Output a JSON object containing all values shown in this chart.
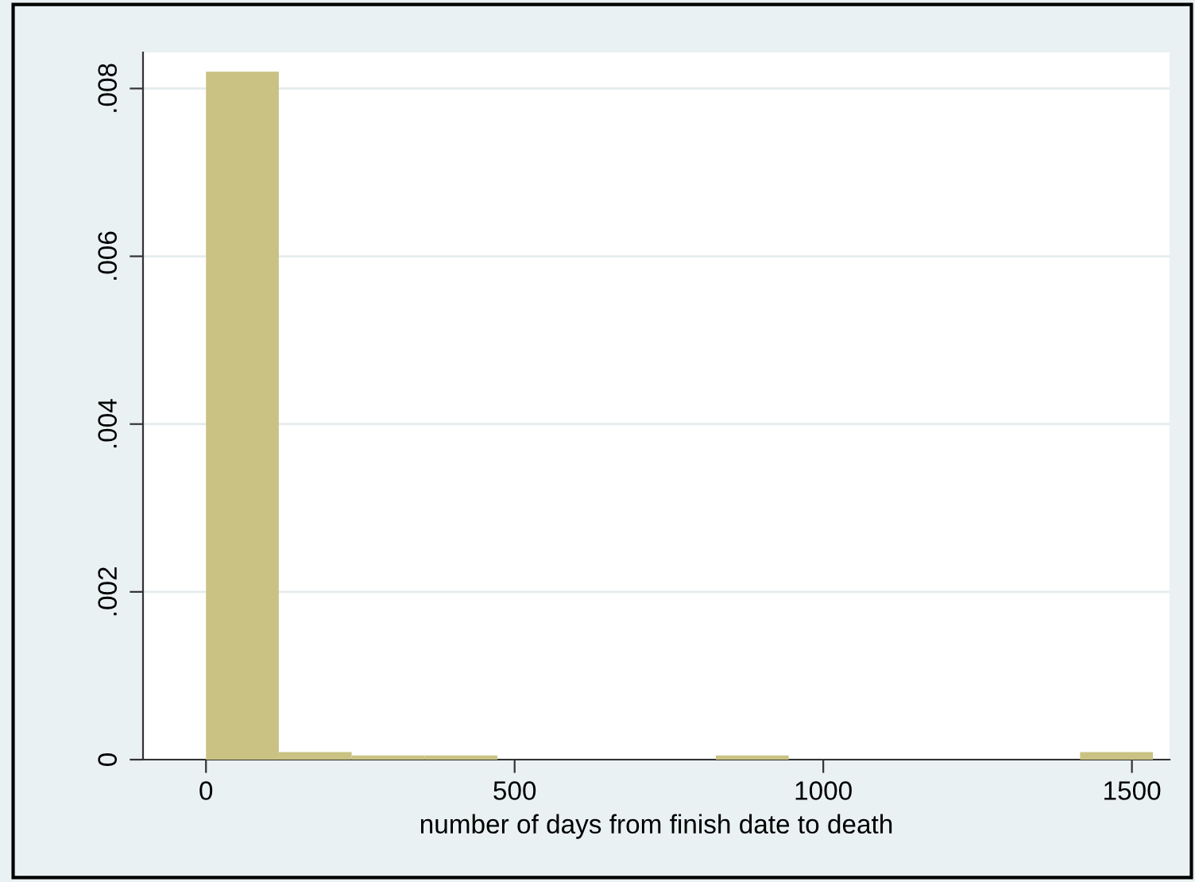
{
  "chart_data": {
    "type": "histogram",
    "xlabel": "number of days from finish date to death",
    "bins": [
      0,
      118,
      236,
      354,
      472,
      590,
      708,
      826,
      944,
      1062,
      1180,
      1298,
      1416,
      1534
    ],
    "values": [
      0.0082,
      9e-05,
      5e-05,
      5e-05,
      0,
      0,
      0,
      5e-05,
      0,
      0,
      0,
      0,
      9e-05
    ],
    "color": "#c9c283",
    "xlim": [
      -102,
      1561
    ],
    "ylim": [
      0,
      0.00843
    ],
    "xticks": [
      0,
      500,
      1000,
      1500
    ],
    "yticks": [
      {
        "value": 0,
        "label": "0"
      },
      {
        "value": 0.002,
        "label": ".002"
      },
      {
        "value": 0.004,
        "label": ".004"
      },
      {
        "value": 0.006,
        "label": ".006"
      },
      {
        "value": 0.008,
        "label": ".008"
      }
    ],
    "grid": "y",
    "legend": false
  }
}
